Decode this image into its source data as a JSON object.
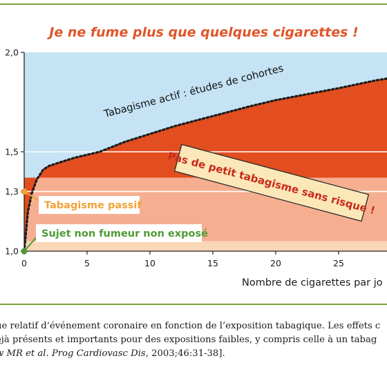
{
  "chart_data": {
    "type": "area",
    "title": "Je ne fume plus que quelques cigarettes !",
    "xlabel": "Nombre de cigarettes par jo",
    "ylabel": "",
    "xlim": [
      0,
      30
    ],
    "ylim": [
      1.0,
      2.0
    ],
    "x_ticks": [
      0,
      5,
      10,
      15,
      20,
      25
    ],
    "y_ticks": [
      "1,0",
      "1,3",
      "1,5",
      "2,0"
    ],
    "y_tick_values": [
      1.0,
      1.3,
      1.5,
      2.0
    ],
    "grid": "horizontal",
    "series": [
      {
        "name": "Tabagisme actif : études de cohortes",
        "x": [
          0,
          0.3,
          0.6,
          1,
          1.5,
          2,
          3,
          4,
          6,
          8,
          10,
          12,
          15,
          18,
          20,
          25,
          28,
          30
        ],
        "values": [
          1.0,
          1.2,
          1.29,
          1.36,
          1.41,
          1.43,
          1.45,
          1.47,
          1.5,
          1.55,
          1.59,
          1.63,
          1.68,
          1.73,
          1.76,
          1.82,
          1.86,
          1.88
        ]
      }
    ],
    "points": [
      {
        "name": "Tabagisme passif",
        "x": 0,
        "y": 1.3
      },
      {
        "name": "Sujet non fumeur non exposé",
        "x": 0,
        "y": 1.0
      }
    ],
    "annotations": [
      "Pas de petit tabagisme sans risque !"
    ],
    "bands": [
      1.0,
      1.05,
      1.37
    ],
    "colors": {
      "background": "#c5e3f4",
      "active_fill": "#e24e1f",
      "passive_band": "#f5af90",
      "base_band": "#fad7b6",
      "passive_point": "#f0a23a",
      "nonsmoker_point": "#4f9a33",
      "title": "#e0562a",
      "frame": "#7aa23e"
    }
  },
  "caption": {
    "line1": "ue relatif d’événement coronaire en fonction de l’exposition tabagique. Les effets c",
    "line2": "éjà présents et importants pour des expositions faibles, y compris celle à un tabag",
    "line3_italic": "w MR et al. Prog Cardiovasc Dis",
    "line3_rest": ", 2003;46:31-38]."
  }
}
